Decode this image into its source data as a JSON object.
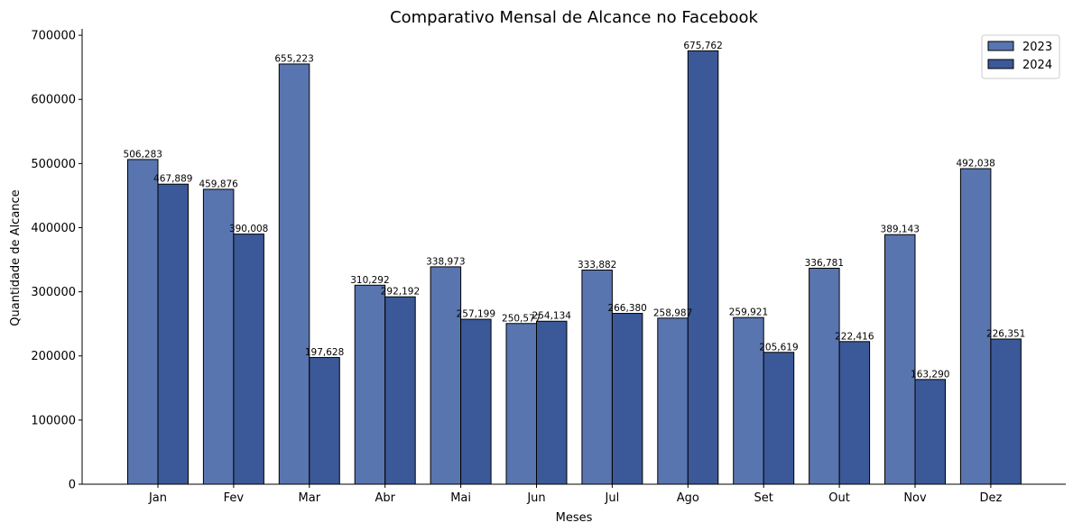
{
  "chart_data": {
    "type": "bar",
    "title": "Comparativo Mensal de Alcance no Facebook",
    "xlabel": "Meses",
    "ylabel": "Quantidade de Alcance",
    "categories": [
      "Jan",
      "Fev",
      "Mar",
      "Abr",
      "Mai",
      "Jun",
      "Jul",
      "Ago",
      "Set",
      "Out",
      "Nov",
      "Dez"
    ],
    "series": [
      {
        "name": "2023",
        "color": "#5975b0",
        "values": [
          506283,
          459876,
          655223,
          310292,
          338973,
          250577,
          333882,
          258987,
          259921,
          336781,
          389143,
          492038
        ],
        "labels": [
          "506,283",
          "459,876",
          "655,223",
          "310,292",
          "338,973",
          "250,577",
          "333,882",
          "258,987",
          "259,921",
          "336,781",
          "389,143",
          "492,038"
        ]
      },
      {
        "name": "2024",
        "color": "#3b5998",
        "values": [
          467889,
          390008,
          197628,
          292192,
          257199,
          254134,
          266380,
          675762,
          205619,
          222416,
          163290,
          226351
        ],
        "labels": [
          "467,889",
          "390,008",
          "197,628",
          "292,192",
          "257,199",
          "254,134",
          "266,380",
          "675,762",
          "205,619",
          "222,416",
          "163,290",
          "226,351"
        ]
      }
    ],
    "ylim": [
      0,
      710000
    ],
    "yticks": [
      0,
      100000,
      200000,
      300000,
      400000,
      500000,
      600000,
      700000
    ],
    "ytick_labels": [
      "0",
      "100000",
      "200000",
      "300000",
      "400000",
      "500000",
      "600000",
      "700000"
    ],
    "grid": false,
    "legend": "top-right"
  }
}
